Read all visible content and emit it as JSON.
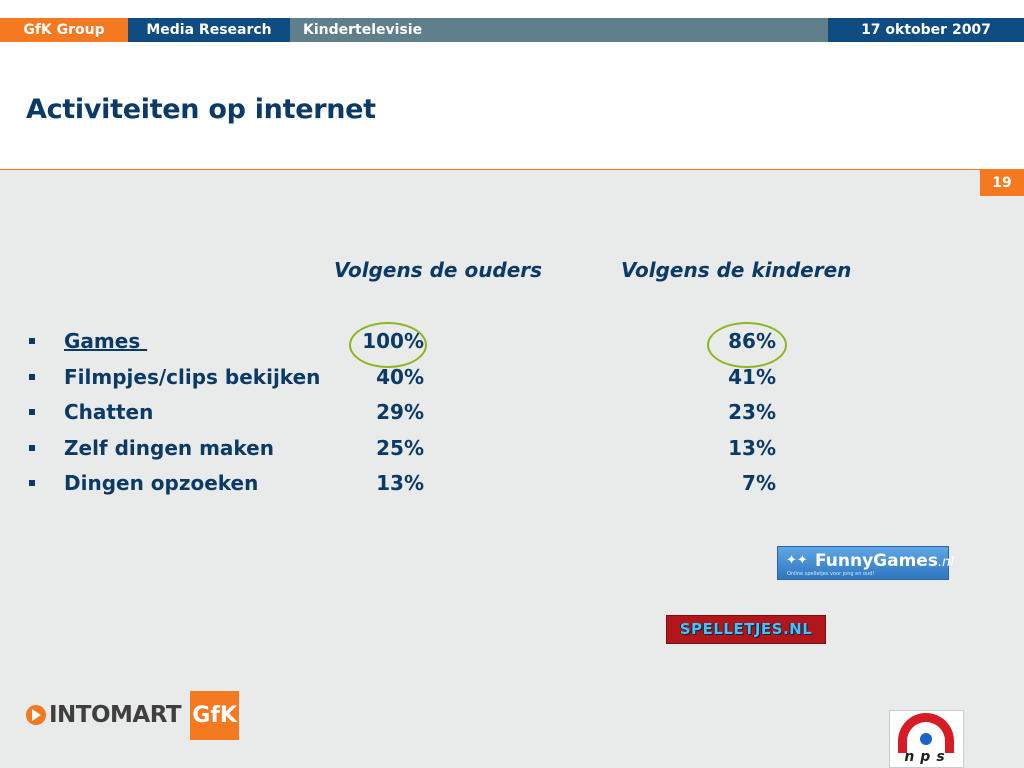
{
  "header": {
    "brand": "GfK Group",
    "section": "Media Research",
    "topic": "Kindertelevisie",
    "date": "17 oktober 2007"
  },
  "slide": {
    "title": "Activiteiten op internet",
    "page_number": "19"
  },
  "table": {
    "columns": [
      "Volgens de ouders",
      "Volgens de kinderen"
    ],
    "rows": [
      {
        "label": "Games ",
        "parents": "100%",
        "kids": "86%",
        "highlighted": true,
        "link": true
      },
      {
        "label": "Filmpjes/clips bekijken",
        "parents": "40%",
        "kids": "41%"
      },
      {
        "label": "Chatten",
        "parents": "29%",
        "kids": "23%"
      },
      {
        "label": "Zelf dingen maken",
        "parents": "25%",
        "kids": "13%"
      },
      {
        "label": "Dingen opzoeken",
        "parents": "13%",
        "kids": "7%"
      }
    ],
    "highlight_color": "#8ab61e"
  },
  "logos": {
    "funnygames": {
      "name": "FunnyGames",
      "suffix": ".nl",
      "tagline": "Online spelletjes voor jong en oud!"
    },
    "spelletjes": {
      "name": "SPELLETJES.NL"
    },
    "intomart": {
      "name": "INTOMART",
      "partner": "GfK"
    },
    "nps": {
      "name": "nps"
    }
  },
  "colors": {
    "accent_orange": "#f47920",
    "navy": "#0f4c81",
    "text_navy": "#0b3a66",
    "content_bg": "#e9eaea"
  }
}
